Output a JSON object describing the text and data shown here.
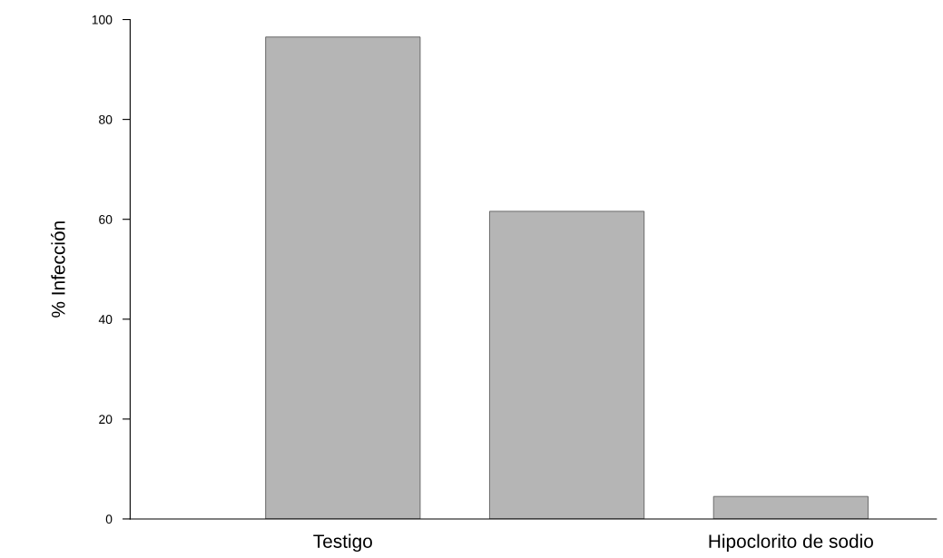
{
  "chart_data": {
    "type": "bar",
    "ylabel": "% Infección",
    "categories": [
      "Testigo",
      null,
      "Hipoclorito de sodio"
    ],
    "values": [
      96.5,
      61.6,
      4.5
    ],
    "color": "#b5b5b5",
    "ylim": [
      0,
      100
    ],
    "yticks": [
      0,
      20,
      40,
      60,
      80,
      100
    ],
    "grid": false
  }
}
